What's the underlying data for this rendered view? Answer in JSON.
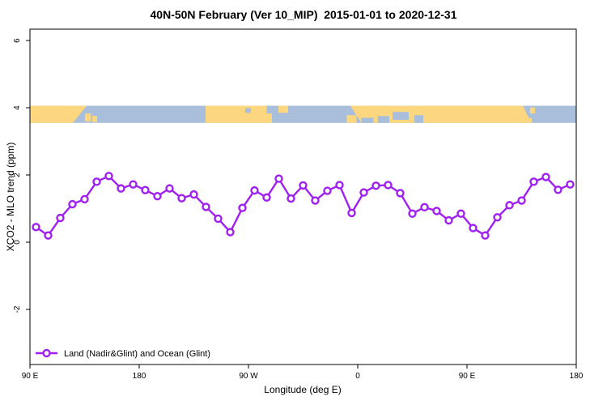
{
  "title": "40N-50N February (Ver 10_MIP)  2015-01-01 to 2020-12-31",
  "chart_data": {
    "type": "line",
    "title": "40N-50N February (Ver 10_MIP)  2015-01-01 to 2020-12-31",
    "xlabel": "Longitude (deg E)",
    "ylabel": "XCO2 - MLO trend (ppm)",
    "xlim": [
      90,
      540
    ],
    "ylim": [
      -3.64,
      6.34
    ],
    "grid": false,
    "x_ticks": [
      {
        "lon": 90,
        "label": "90 E"
      },
      {
        "lon": 180,
        "label": "180"
      },
      {
        "lon": 270,
        "label": "90 W"
      },
      {
        "lon": 360,
        "label": "0"
      },
      {
        "lon": 450,
        "label": "90 E"
      },
      {
        "lon": 540,
        "label": "180"
      }
    ],
    "y_ticks": [
      6,
      4,
      2,
      0,
      -2
    ],
    "legend": {
      "label": "Land (Nadir&Glint) and Ocean (Glint)",
      "position": "bottom-left"
    },
    "series": [
      {
        "name": "Land (Nadir&Glint) and Ocean (Glint)",
        "color": "#A020F0",
        "marker": "open-circle",
        "x": [
          95,
          105,
          115,
          125,
          135,
          145,
          155,
          165,
          175,
          185,
          195,
          205,
          215,
          225,
          235,
          245,
          255,
          265,
          275,
          285,
          295,
          305,
          315,
          325,
          335,
          345,
          355,
          365,
          375,
          385,
          395,
          405,
          415,
          425,
          435,
          445,
          455,
          465,
          475,
          485,
          495,
          505,
          515,
          525,
          535
        ],
        "values": [
          0.45,
          0.2,
          0.72,
          1.13,
          1.28,
          1.8,
          1.97,
          1.6,
          1.72,
          1.55,
          1.37,
          1.6,
          1.31,
          1.42,
          1.05,
          0.7,
          0.3,
          1.02,
          1.54,
          1.33,
          1.89,
          1.3,
          1.69,
          1.24,
          1.53,
          1.7,
          0.87,
          1.48,
          1.68,
          1.7,
          1.46,
          0.85,
          1.04,
          0.93,
          0.65,
          0.85,
          0.42,
          0.2,
          0.74,
          1.1,
          1.24,
          1.8,
          1.94,
          1.56,
          1.72
        ]
      }
    ],
    "map_band": {
      "description": "World land/ocean strip for latitude band 40N-50N drawn across plot at ~4 ppm",
      "value_top": 4.06,
      "value_bottom": 3.55,
      "ocean_color": "#A8BEDB",
      "land_color": "#FCD77F",
      "land_segments": [
        {
          "name": "asia-west",
          "shape": "poly",
          "pts": [
            [
              90,
              0
            ],
            [
              136.7,
              0
            ],
            [
              125.3,
              1
            ],
            [
              90,
              1
            ]
          ]
        },
        {
          "name": "japan-honshu",
          "shape": "rect",
          "lon": [
            135.3,
            140.3
          ],
          "frac": [
            0.45,
            0.91
          ]
        },
        {
          "name": "japan-hokkaido",
          "shape": "rect",
          "lon": [
            141.3,
            145.3
          ],
          "frac": [
            0.59,
            0.95
          ]
        },
        {
          "name": "north-america",
          "shape": "rect",
          "lon": [
            234.7,
            289.3
          ],
          "frac": [
            0,
            1
          ]
        },
        {
          "name": "newfoundland",
          "shape": "rect",
          "lon": [
            294.7,
            302.7
          ],
          "frac": [
            0,
            0.41
          ]
        },
        {
          "name": "iberia",
          "shape": "rect",
          "lon": [
            351,
            359
          ],
          "frac": [
            0.55,
            1
          ]
        },
        {
          "name": "eurasia",
          "shape": "poly",
          "pts": [
            [
              354,
              0
            ],
            [
              496,
              0
            ],
            [
              503,
              1
            ],
            [
              363,
              1
            ]
          ]
        },
        {
          "name": "sakhalin",
          "shape": "rect",
          "lon": [
            502,
            506
          ],
          "frac": [
            0.1,
            0.45
          ]
        },
        {
          "name": "kuril",
          "shape": "rect",
          "lon": [
            501,
            503.5
          ],
          "frac": [
            0.72,
            0.95
          ]
        }
      ],
      "water_overlays": [
        {
          "name": "gulf-st-lawrence",
          "shape": "rect",
          "lon": [
            285,
            289.3
          ],
          "frac": [
            0,
            0.45
          ]
        },
        {
          "name": "lake-superior",
          "shape": "rect",
          "lon": [
            267.3,
            272
          ],
          "frac": [
            0.14,
            0.41
          ]
        },
        {
          "name": "med-west",
          "shape": "rect",
          "lon": [
            363,
            373
          ],
          "frac": [
            0.7,
            1
          ]
        },
        {
          "name": "med-east",
          "shape": "rect",
          "lon": [
            376.5,
            386
          ],
          "frac": [
            0.6,
            1
          ]
        },
        {
          "name": "black-sea",
          "shape": "rect",
          "lon": [
            388.7,
            402
          ],
          "frac": [
            0.36,
            0.82
          ]
        },
        {
          "name": "caspian-sea",
          "shape": "rect",
          "lon": [
            406.7,
            414
          ],
          "frac": [
            0.55,
            1
          ]
        }
      ]
    }
  }
}
